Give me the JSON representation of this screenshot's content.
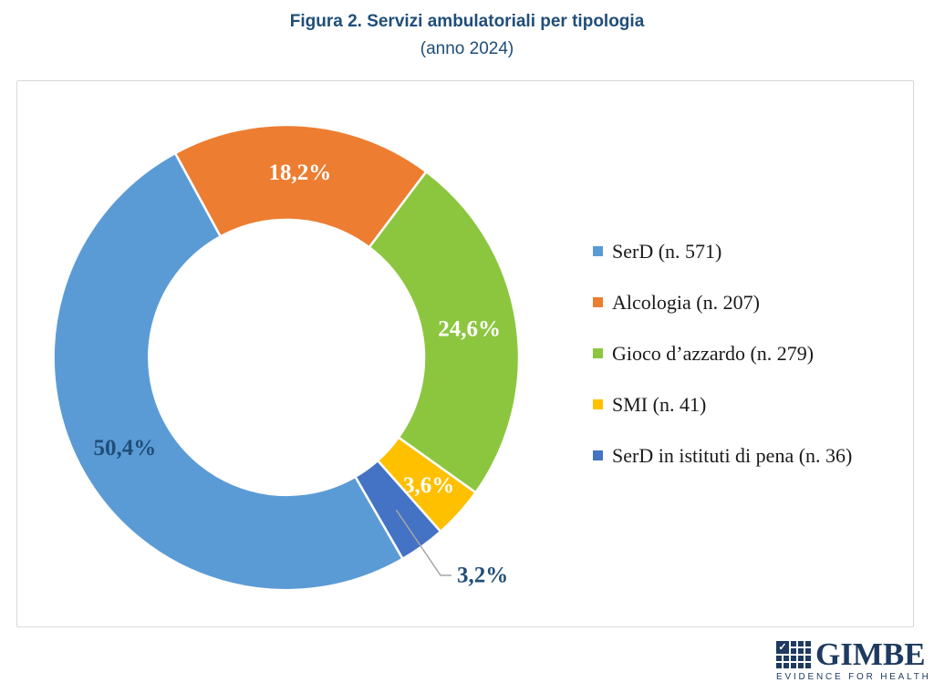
{
  "figure": {
    "title": "Figura 2. Servizi ambulatoriali per tipologia",
    "subtitle": "(anno 2024)"
  },
  "chart_data": {
    "type": "pie",
    "subtype": "donut",
    "title": "Figura 2. Servizi ambulatoriali per tipologia (anno 2024)",
    "start_angle_deg": 150,
    "legend_position": "right",
    "slices": [
      {
        "id": "serd",
        "name": "SerD",
        "legend_label": "SerD (n. 571)",
        "count": 571,
        "value": 50.4,
        "pct_label": "50,4%",
        "color": "#5B9BD5",
        "label_color": "#1F4E79",
        "label_placement": "inside"
      },
      {
        "id": "alcologia",
        "name": "Alcologia",
        "legend_label": "Alcologia (n. 207)",
        "count": 207,
        "value": 18.2,
        "pct_label": "18,2%",
        "color": "#ED7D31",
        "label_color": "#FFFFFF",
        "label_placement": "inside"
      },
      {
        "id": "gioco-dazzardo",
        "name": "Gioco d’azzardo",
        "legend_label": "Gioco d’azzardo (n. 279)",
        "count": 279,
        "value": 24.6,
        "pct_label": "24,6%",
        "color": "#8CC63F",
        "label_color": "#FFFFFF",
        "label_placement": "inside"
      },
      {
        "id": "smi",
        "name": "SMI",
        "legend_label": "SMI (n. 41)",
        "count": 41,
        "value": 3.6,
        "pct_label": "3,6%",
        "color": "#FFC000",
        "label_color": "#FFFFFF",
        "label_placement": "inside",
        "label_radius": 210,
        "label_size": 22
      },
      {
        "id": "serd-istituti-pena",
        "name": "SerD in istituti di pena",
        "legend_label": "SerD in istituti di pena (n. 36)",
        "count": 36,
        "value": 3.2,
        "pct_label": "3,2%",
        "color": "#4472C4",
        "label_color": "#1F4E79",
        "label_placement": "outside"
      }
    ]
  },
  "colors": {
    "title_text": "#1F4E79",
    "frame_border": "#D9D9D9",
    "leader_line": "#A6A6A6",
    "legend_text": "#1A1A1A",
    "logo_navy": "#1E3A5F"
  },
  "logo": {
    "wordmark": "GIMBE",
    "tagline": "EVIDENCE FOR HEALTH",
    "check_glyph": "✓"
  }
}
